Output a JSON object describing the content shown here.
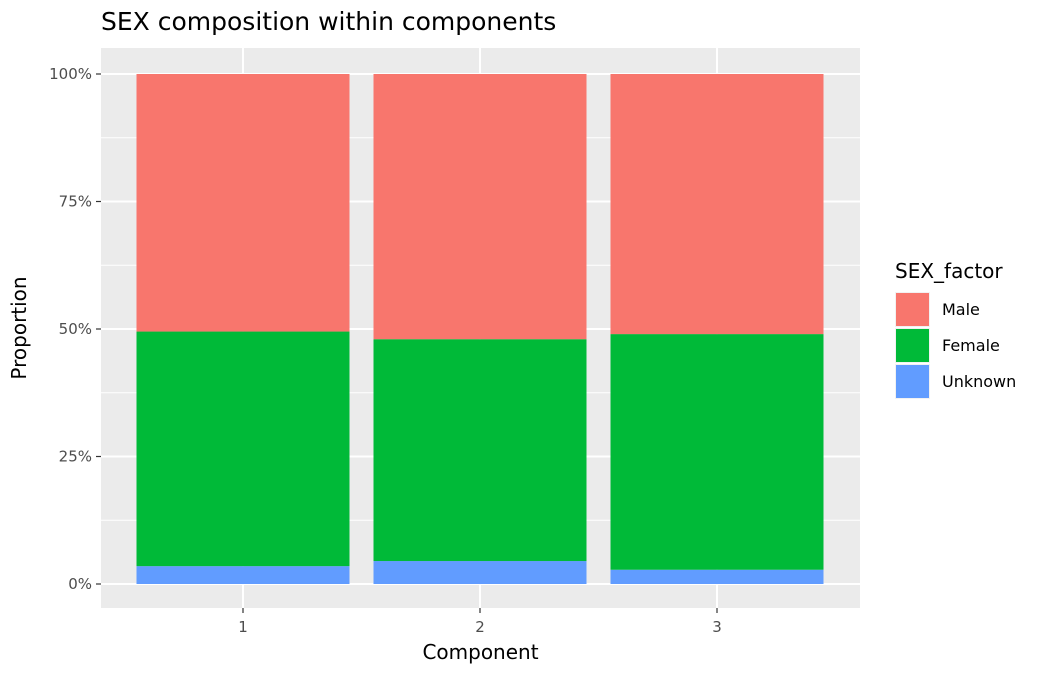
{
  "chart_data": {
    "type": "bar",
    "stacked": true,
    "title": "SEX composition within components",
    "xlabel": "Component",
    "ylabel": "Proportion",
    "categories": [
      "1",
      "2",
      "3"
    ],
    "ylim": [
      0,
      1
    ],
    "yticks": [
      0,
      0.25,
      0.5,
      0.75,
      1.0
    ],
    "ytick_labels": [
      "0%",
      "25%",
      "50%",
      "75%",
      "100%"
    ],
    "grid": true,
    "legend": {
      "title": "SEX_factor",
      "position": "right"
    },
    "series": [
      {
        "name": "Unknown",
        "color": "#619CFF",
        "values": [
          0.035,
          0.045,
          0.028
        ]
      },
      {
        "name": "Female",
        "color": "#00BA38",
        "values": [
          0.46,
          0.435,
          0.462
        ]
      },
      {
        "name": "Male",
        "color": "#F8766D",
        "values": [
          0.505,
          0.52,
          0.51
        ]
      }
    ],
    "legend_order": [
      "Male",
      "Female",
      "Unknown"
    ]
  }
}
